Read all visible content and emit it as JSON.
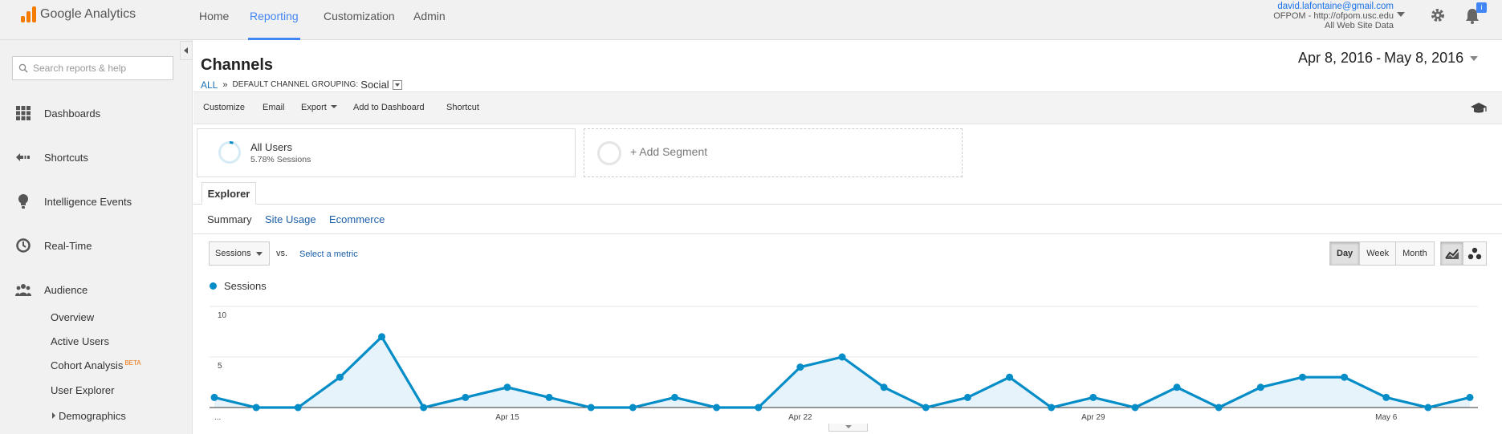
{
  "app": {
    "logo_text": "Google Analytics",
    "nav": [
      "Home",
      "Reporting",
      "Customization",
      "Admin"
    ],
    "active_nav": "Reporting",
    "account": {
      "email": "david.lafontaine@gmail.com",
      "property": "OFPOM - http://ofpom.usc.edu",
      "view": "All Web Site Data"
    },
    "notification_badge": "i"
  },
  "sidebar": {
    "search_placeholder": "Search reports & help",
    "items": [
      {
        "label": "Dashboards",
        "icon": "grid-icon"
      },
      {
        "label": "Shortcuts",
        "icon": "shortcut-arrow-icon"
      },
      {
        "label": "Intelligence Events",
        "icon": "lightbulb-icon"
      },
      {
        "label": "Real-Time",
        "icon": "clock-icon"
      },
      {
        "label": "Audience",
        "icon": "people-icon"
      }
    ],
    "audience_sub": [
      {
        "label": "Overview"
      },
      {
        "label": "Active Users"
      },
      {
        "label": "Cohort Analysis",
        "badge": "BETA"
      },
      {
        "label": "User Explorer"
      },
      {
        "label": "Demographics"
      }
    ]
  },
  "report": {
    "title": "Channels",
    "breadcrumb": {
      "root": "ALL",
      "separator": "»",
      "grouping_label": "DEFAULT CHANNEL GROUPING:",
      "grouping_value": "Social"
    },
    "date_start": "Apr 8, 2016",
    "date_separator": "-",
    "date_end": "May 8, 2016",
    "toolbar": [
      "Customize",
      "Email",
      "Export",
      "Add to Dashboard",
      "Shortcut"
    ],
    "segment": {
      "name": "All Users",
      "sub": "5.78% Sessions",
      "percent": 5.78
    },
    "add_segment": "+ Add Segment",
    "explorer_tab": "Explorer",
    "subtabs": [
      "Summary",
      "Site Usage",
      "Ecommerce"
    ],
    "active_subtab": "Summary",
    "metric": "Sessions",
    "vs": "vs.",
    "select_metric": "Select a metric",
    "periods": [
      "Day",
      "Week",
      "Month"
    ],
    "active_period": "Day"
  },
  "colors": {
    "brand_orange": "#f57c00",
    "accent_blue": "#4285f4",
    "series_blue": "#058dc7",
    "area_fill": "#e6f3fa",
    "link_blue": "#1a5fa8"
  },
  "chart_data": {
    "type": "area",
    "series": [
      {
        "name": "Sessions",
        "values": [
          1,
          0,
          0,
          3,
          7,
          0,
          1,
          2,
          1,
          0,
          0,
          1,
          0,
          0,
          4,
          5,
          2,
          0,
          1,
          3,
          0,
          1,
          0,
          2,
          0,
          2,
          3,
          3,
          1,
          0,
          1
        ]
      }
    ],
    "x": [
      "...",
      "Apr 9",
      "Apr 10",
      "Apr 11",
      "Apr 12",
      "Apr 13",
      "Apr 14",
      "Apr 15",
      "Apr 16",
      "Apr 17",
      "Apr 18",
      "Apr 19",
      "Apr 20",
      "Apr 21",
      "Apr 22",
      "Apr 23",
      "Apr 24",
      "Apr 25",
      "Apr 26",
      "Apr 27",
      "Apr 28",
      "Apr 29",
      "Apr 30",
      "May 1",
      "May 2",
      "May 3",
      "May 4",
      "May 5",
      "May 6",
      "May 7",
      "May 8"
    ],
    "x_tick_labels": [
      "...",
      "Apr 15",
      "Apr 22",
      "Apr 29",
      "May 6"
    ],
    "y_ticks": [
      5,
      10
    ],
    "ylim": [
      0,
      10
    ],
    "grid": true
  }
}
